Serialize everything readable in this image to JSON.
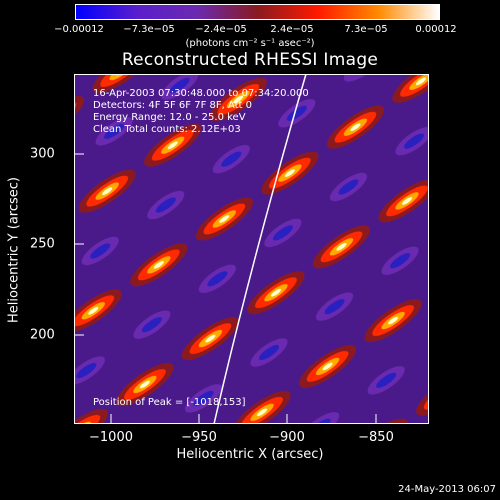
{
  "colorbar": {
    "ticks": [
      "−0.00012",
      "−7.3e−05",
      "−2.4e−05",
      "2.4e−05",
      "7.3e−05",
      "0.00012"
    ],
    "units_line": "(photons cm⁻² s⁻¹ asec⁻²)",
    "colormap": [
      "#0000ff",
      "#5a1ecc",
      "#6a2ab0",
      "#8a1a20",
      "#ff1a00",
      "#ff8a00",
      "#ffffff"
    ]
  },
  "title": "Reconstructed RHESSI Image",
  "info": {
    "time_range": "16-Apr-2003 07:30:48.000 to 07:34:20.000",
    "detectors": "Detectors: 4F 5F 6F 7F 8F, Att 0",
    "energy_range": "Energy Range: 12.0 - 25.0 keV",
    "clean": "Clean    Total counts: 2.12E+03"
  },
  "peak_text": "Position of Peak = [-1018,153]",
  "axes": {
    "xlabel": "Heliocentric X (arcsec)",
    "ylabel": "Heliocentric Y (arcsec)",
    "xticks": [
      "−1000",
      "−950",
      "−900",
      "−850"
    ],
    "yticks": [
      "300",
      "250",
      "200"
    ]
  },
  "timestamp": "24-May-2013 06:07"
}
